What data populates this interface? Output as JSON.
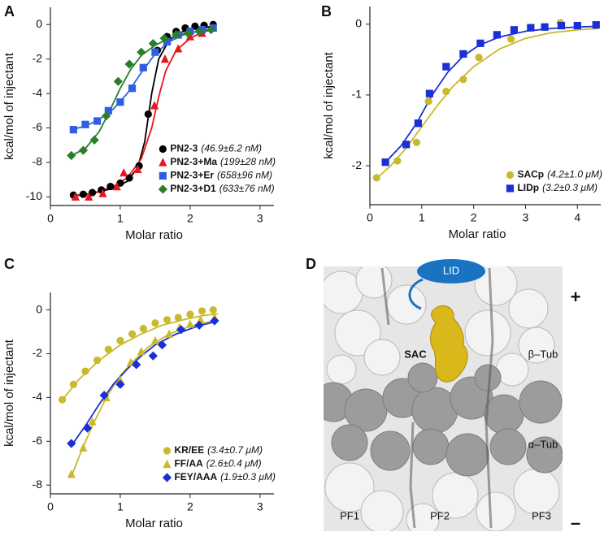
{
  "chart_data": [
    {
      "type": "scatter",
      "panel": "A",
      "xlabel": "Molar ratio",
      "ylabel": "kcal/mol of injectant",
      "xlim": [
        0,
        3.2
      ],
      "ylim": [
        -10.5,
        1
      ],
      "xticks": [
        0,
        1,
        2,
        3
      ],
      "yticks": [
        0,
        -2,
        -4,
        -6,
        -8,
        -10
      ],
      "legend": "lower right",
      "series": [
        {
          "name": "PN2-3",
          "kd": "(46.9±6.2 nM)",
          "color": "#000000",
          "marker": "circle",
          "x": [
            0.33,
            0.47,
            0.6,
            0.73,
            0.86,
            1.0,
            1.13,
            1.27,
            1.4,
            1.53,
            1.67,
            1.8,
            1.93,
            2.07,
            2.2,
            2.33
          ],
          "values": [
            -9.9,
            -9.85,
            -9.75,
            -9.6,
            -9.4,
            -9.2,
            -8.9,
            -8.2,
            -5.2,
            -1.5,
            -0.7,
            -0.4,
            -0.2,
            -0.1,
            -0.05,
            0
          ],
          "fit_x": [
            0.3,
            0.6,
            0.9,
            1.1,
            1.25,
            1.35,
            1.45,
            1.55,
            1.7,
            1.9,
            2.1,
            2.35
          ],
          "fit_values": [
            -9.95,
            -9.8,
            -9.5,
            -9.1,
            -8.3,
            -6.8,
            -4.0,
            -2.0,
            -0.9,
            -0.4,
            -0.2,
            -0.1
          ]
        },
        {
          "name": "PN2-3+Ma",
          "kd": "(199±28 nM)",
          "color": "#e8141e",
          "marker": "triangle",
          "x": [
            0.36,
            0.55,
            0.75,
            0.95,
            1.05,
            1.25,
            1.49,
            1.64,
            1.83,
            2.0,
            2.17
          ],
          "values": [
            -10.0,
            -10.0,
            -9.8,
            -9.4,
            -8.6,
            -8.4,
            -4.7,
            -2.0,
            -1.4,
            -0.7,
            -0.5
          ],
          "fit_x": [
            0.3,
            0.6,
            0.9,
            1.1,
            1.3,
            1.45,
            1.55,
            1.65,
            1.8,
            2.0,
            2.2,
            2.35
          ],
          "fit_values": [
            -10.0,
            -9.8,
            -9.4,
            -8.9,
            -7.8,
            -6.0,
            -4.2,
            -2.7,
            -1.5,
            -0.8,
            -0.4,
            -0.3
          ]
        },
        {
          "name": "PN2-3+Er",
          "kd": "(658±96 nM)",
          "color": "#2f5fe0",
          "marker": "square",
          "x": [
            0.33,
            0.5,
            0.67,
            0.83,
            1.0,
            1.17,
            1.33,
            1.5,
            1.67,
            1.83,
            2.0,
            2.17,
            2.33
          ],
          "values": [
            -6.1,
            -5.8,
            -5.6,
            -5.0,
            -4.5,
            -3.7,
            -2.5,
            -1.6,
            -1.0,
            -0.6,
            -0.4,
            -0.3,
            -0.2
          ],
          "fit_x": [
            0.3,
            0.5,
            0.7,
            0.9,
            1.1,
            1.3,
            1.5,
            1.7,
            1.9,
            2.1,
            2.35
          ],
          "fit_values": [
            -6.1,
            -5.9,
            -5.5,
            -4.9,
            -4.0,
            -2.8,
            -1.7,
            -1.0,
            -0.6,
            -0.4,
            -0.2
          ]
        },
        {
          "name": "PN2-3+D1",
          "kd": "(633±76 nM)",
          "color": "#2a7f2a",
          "marker": "diamond",
          "x": [
            0.3,
            0.47,
            0.63,
            0.8,
            0.97,
            1.13,
            1.3,
            1.47,
            1.63,
            1.8,
            1.97,
            2.13,
            2.3
          ],
          "values": [
            -7.6,
            -7.3,
            -6.7,
            -5.3,
            -3.3,
            -2.3,
            -1.6,
            -1.1,
            -0.8,
            -0.6,
            -0.5,
            -0.4,
            -0.3
          ],
          "fit_x": [
            0.3,
            0.5,
            0.7,
            0.85,
            1.0,
            1.15,
            1.3,
            1.5,
            1.7,
            1.9,
            2.1,
            2.35
          ],
          "fit_values": [
            -7.6,
            -7.2,
            -6.2,
            -5.0,
            -3.7,
            -2.6,
            -1.8,
            -1.2,
            -0.8,
            -0.55,
            -0.4,
            -0.25
          ]
        }
      ]
    },
    {
      "type": "scatter",
      "panel": "B",
      "xlabel": "Molar ratio",
      "ylabel": "kcal/mol of injectant",
      "xlim": [
        0,
        4.45
      ],
      "ylim": [
        -2.55,
        0.25
      ],
      "xticks": [
        0,
        1,
        2,
        3,
        4
      ],
      "yticks": [
        0,
        -1,
        -2
      ],
      "legend": "lower right",
      "series": [
        {
          "name": "SACp",
          "kd": "(4.2±1.0 μM)",
          "color": "#c9b92c",
          "marker": "circle",
          "x": [
            0.13,
            0.53,
            0.9,
            1.13,
            1.47,
            1.8,
            2.1,
            2.72,
            3.67
          ],
          "values": [
            -2.17,
            -1.93,
            -1.67,
            -1.09,
            -0.95,
            -0.78,
            -0.47,
            -0.21,
            0.02
          ],
          "fit_x": [
            0.1,
            0.4,
            0.7,
            1.0,
            1.3,
            1.6,
            2.0,
            2.5,
            3.0,
            3.5,
            4.0,
            4.4
          ],
          "fit_values": [
            -2.2,
            -2.0,
            -1.75,
            -1.45,
            -1.15,
            -0.88,
            -0.6,
            -0.35,
            -0.2,
            -0.12,
            -0.08,
            -0.06
          ]
        },
        {
          "name": "LIDp",
          "kd": "(3.2±0.3 μM)",
          "color": "#1a2fd6",
          "marker": "square",
          "x": [
            0.3,
            0.7,
            0.93,
            1.15,
            1.47,
            1.8,
            2.13,
            2.45,
            2.78,
            3.1,
            3.37,
            3.69,
            4.0,
            4.36
          ],
          "values": [
            -1.95,
            -1.7,
            -1.4,
            -0.98,
            -0.6,
            -0.42,
            -0.27,
            -0.15,
            -0.08,
            -0.05,
            -0.04,
            -0.02,
            -0.02,
            -0.01
          ],
          "fit_x": [
            0.3,
            0.6,
            0.9,
            1.2,
            1.5,
            1.8,
            2.1,
            2.5,
            3.0,
            3.5,
            4.0,
            4.4
          ],
          "fit_values": [
            -1.95,
            -1.72,
            -1.4,
            -1.0,
            -0.68,
            -0.45,
            -0.3,
            -0.18,
            -0.1,
            -0.06,
            -0.04,
            -0.03
          ]
        }
      ]
    },
    {
      "type": "scatter",
      "panel": "C",
      "xlabel": "Molar ratio",
      "ylabel": "kcal/mol of injectant",
      "xlim": [
        0,
        3.2
      ],
      "ylim": [
        -8.4,
        0.8
      ],
      "xticks": [
        0,
        1,
        2,
        3
      ],
      "yticks": [
        0,
        -2,
        -4,
        -6,
        -8
      ],
      "legend": "lower right",
      "series": [
        {
          "name": "KR/EE",
          "kd": "(3.4±0.7 μM)",
          "color": "#c9b92c",
          "marker": "circle",
          "x": [
            0.17,
            0.33,
            0.5,
            0.67,
            0.83,
            1.0,
            1.17,
            1.33,
            1.5,
            1.67,
            1.83,
            2.0,
            2.17,
            2.33
          ],
          "values": [
            -4.1,
            -3.4,
            -2.8,
            -2.3,
            -1.8,
            -1.4,
            -1.1,
            -0.85,
            -0.6,
            -0.45,
            -0.35,
            -0.2,
            -0.05,
            0.0
          ],
          "fit_x": [
            0.15,
            0.4,
            0.7,
            1.0,
            1.3,
            1.6,
            1.9,
            2.2,
            2.4
          ],
          "fit_values": [
            -4.2,
            -3.2,
            -2.3,
            -1.6,
            -1.1,
            -0.7,
            -0.45,
            -0.25,
            -0.18
          ]
        },
        {
          "name": "FF/AA",
          "kd": "(2.6±0.4 μM)",
          "color": "#c9b92c",
          "marker": "triangle",
          "x": [
            0.3,
            0.47,
            0.6,
            0.8,
            1.0,
            1.15,
            1.3,
            1.5,
            1.7,
            1.85,
            2.0,
            2.15,
            2.35
          ],
          "values": [
            -7.5,
            -6.3,
            -5.1,
            -4.0,
            -3.2,
            -2.4,
            -1.9,
            -1.4,
            -1.1,
            -0.8,
            -0.65,
            -0.45,
            -0.35
          ],
          "fit_x": [
            0.3,
            0.45,
            0.6,
            0.8,
            1.0,
            1.2,
            1.4,
            1.7,
            2.0,
            2.4
          ],
          "fit_values": [
            -7.6,
            -6.4,
            -5.3,
            -4.0,
            -3.0,
            -2.3,
            -1.7,
            -1.1,
            -0.75,
            -0.45
          ]
        },
        {
          "name": "FEY/AAA",
          "kd": "(1.9±0.3 μM)",
          "color": "#1a2fd6",
          "marker": "diamond",
          "x": [
            0.3,
            0.53,
            0.77,
            1.0,
            1.23,
            1.47,
            1.6,
            1.87,
            2.13,
            2.35
          ],
          "values": [
            -6.1,
            -5.4,
            -3.9,
            -3.4,
            -2.5,
            -2.1,
            -1.6,
            -0.9,
            -0.7,
            -0.5
          ],
          "fit_x": [
            0.3,
            0.5,
            0.7,
            0.9,
            1.1,
            1.3,
            1.5,
            1.8,
            2.1,
            2.4
          ],
          "fit_values": [
            -6.2,
            -5.3,
            -4.3,
            -3.4,
            -2.7,
            -2.1,
            -1.6,
            -1.1,
            -0.75,
            -0.5
          ]
        }
      ]
    }
  ],
  "panel_d": {
    "panel": "D",
    "lid": "LID",
    "sac": "SAC",
    "beta": "β–Tub",
    "alpha": "α–Tub",
    "pf1": "PF1",
    "pf2": "PF2",
    "pf3": "PF3",
    "plus": "+",
    "minus": "–"
  }
}
